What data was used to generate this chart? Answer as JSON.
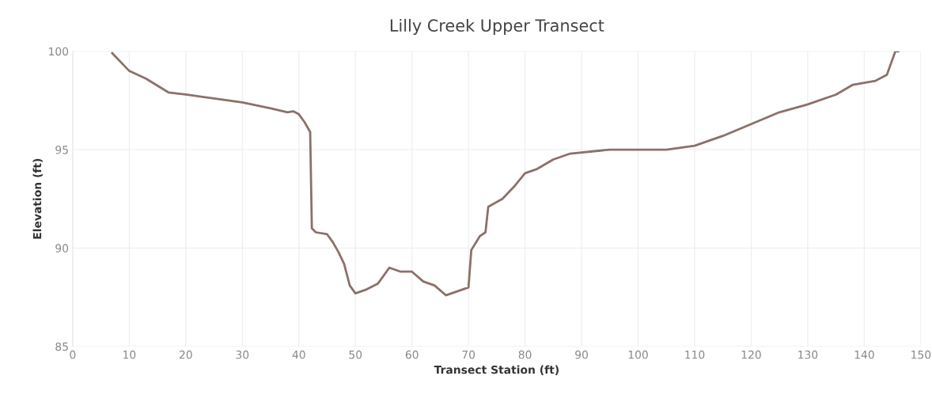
{
  "chart_data": {
    "type": "line",
    "title": "Lilly Creek Upper Transect",
    "xlabel": "Transect Station (ft)",
    "ylabel": "Elevation (ft)",
    "xlim": [
      0,
      150
    ],
    "ylim": [
      85,
      100
    ],
    "xticks": [
      0,
      10,
      20,
      30,
      40,
      50,
      60,
      70,
      80,
      90,
      100,
      110,
      120,
      130,
      140,
      150
    ],
    "yticks": [
      85,
      90,
      95,
      100
    ],
    "grid": true,
    "series": [
      {
        "color": "#8c706a",
        "x": [
          7,
          10,
          13,
          17,
          20,
          25,
          30,
          35,
          38,
          39,
          40,
          41,
          42,
          42.3,
          43,
          45,
          46,
          47,
          48,
          49,
          50,
          52,
          54,
          56,
          58,
          60,
          62,
          64,
          66,
          68,
          70,
          70.5,
          72,
          73,
          73.5,
          76,
          78,
          80,
          82,
          85,
          88,
          95,
          105,
          110,
          115,
          120,
          125,
          130,
          135,
          138,
          142,
          144,
          145.5,
          146
        ],
        "values": [
          99.9,
          99.0,
          98.6,
          97.9,
          97.8,
          97.6,
          97.4,
          97.1,
          96.9,
          96.95,
          96.8,
          96.4,
          95.9,
          91.0,
          90.8,
          90.7,
          90.3,
          89.8,
          89.2,
          88.1,
          87.7,
          87.9,
          88.2,
          89.0,
          88.8,
          88.8,
          88.3,
          88.1,
          87.6,
          87.8,
          88.0,
          89.9,
          90.6,
          90.8,
          92.1,
          92.5,
          93.1,
          93.8,
          94.0,
          94.5,
          94.8,
          95.0,
          95.0,
          95.2,
          95.7,
          96.3,
          96.9,
          97.3,
          97.8,
          98.3,
          98.5,
          98.8,
          100.0,
          100.0
        ]
      }
    ]
  }
}
